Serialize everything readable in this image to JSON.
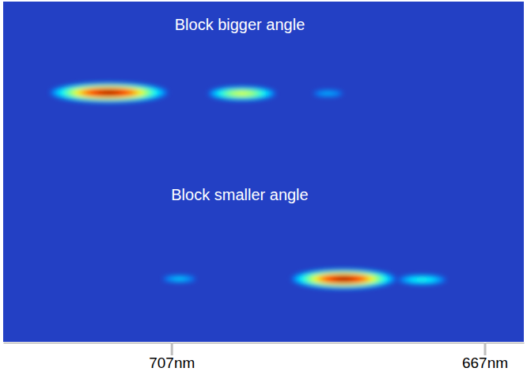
{
  "chart_data": {
    "type": "spectral_image",
    "xlim": [
      728.5,
      662
    ],
    "xticks": [
      {
        "value": 707,
        "label": "707nm"
      },
      {
        "value": 667,
        "label": "667nm"
      }
    ],
    "ylim": [
      0,
      1
    ],
    "tick_labels": "x",
    "panels": [
      {
        "title": "Block bigger angle",
        "spots": {
          "x": [
            715,
            698,
            687
          ],
          "y": [
            0.465,
            0.46,
            0.46
          ],
          "width": [
            4.5,
            3.2,
            2.5
          ],
          "height": [
            0.035,
            0.03,
            0.025
          ],
          "intensity": [
            1.0,
            0.62,
            0.33
          ]
        }
      },
      {
        "title": "Block smaller angle",
        "spots": {
          "x": [
            706,
            685,
            675
          ],
          "y": [
            0.37,
            0.37,
            0.365
          ],
          "width": [
            2.5,
            4.0,
            3.0
          ],
          "height": [
            0.025,
            0.035,
            0.028
          ],
          "intensity": [
            0.35,
            1.0,
            0.42
          ]
        }
      }
    ]
  }
}
